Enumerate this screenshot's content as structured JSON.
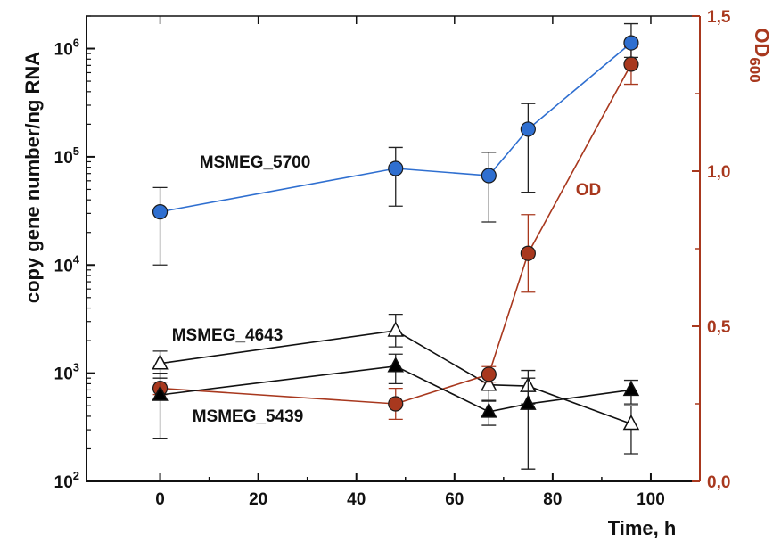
{
  "chart_data": {
    "type": "line",
    "xlabel": "Time, h",
    "ylabel": "copy gene number/ng RNA",
    "y2label": "OD600",
    "xlim": [
      -15,
      110
    ],
    "xticks": [
      "0",
      "20",
      "40",
      "60",
      "80",
      "100"
    ],
    "y_scale": "log",
    "ylim": [
      100,
      2000000
    ],
    "yticks": [
      {
        "base": "10",
        "exp": "2"
      },
      {
        "base": "10",
        "exp": "3"
      },
      {
        "base": "10",
        "exp": "4"
      },
      {
        "base": "10",
        "exp": "5"
      },
      {
        "base": "10",
        "exp": "6"
      }
    ],
    "y2lim": [
      0,
      1.5
    ],
    "y2ticks": [
      "0,0",
      "0,5",
      "1,0",
      "1,5"
    ],
    "grid": false,
    "series": [
      {
        "name": "MSMEG_5700",
        "axis": "left",
        "color": "#2f6fd0",
        "marker": "circle-filled",
        "x": [
          0,
          48,
          67,
          75,
          96
        ],
        "y": [
          31000,
          78000,
          67000,
          180000,
          1130000
        ],
        "err_low": [
          10000,
          35000,
          25000,
          47000,
          830000
        ],
        "err_high": [
          52000,
          122000,
          110000,
          310000,
          1700000
        ]
      },
      {
        "name": "MSMEG_4643",
        "axis": "left",
        "color": "#111111",
        "marker": "triangle-open",
        "x": [
          0,
          48,
          67,
          75,
          96
        ],
        "y": [
          1230,
          2470,
          780,
          760,
          340
        ],
        "err_low": [
          900,
          1750,
          560,
          520,
          180
        ],
        "err_high": [
          1600,
          3500,
          1000,
          1060,
          500
        ]
      },
      {
        "name": "MSMEG_5439",
        "axis": "left",
        "color": "#111111",
        "marker": "triangle-filled",
        "x": [
          0,
          48,
          67,
          75,
          96
        ],
        "y": [
          630,
          1160,
          440,
          520,
          700
        ],
        "err_low": [
          250,
          800,
          330,
          130,
          520
        ],
        "err_high": [
          1000,
          1500,
          550,
          900,
          860
        ]
      },
      {
        "name": "OD",
        "axis": "right",
        "color": "#a8381e",
        "marker": "circle-filled",
        "x": [
          0,
          48,
          67,
          75,
          96
        ],
        "y": [
          0.3,
          0.25,
          0.345,
          0.735,
          1.345
        ],
        "err_low": [
          0.28,
          0.2,
          0.32,
          0.61,
          1.28
        ],
        "err_high": [
          0.32,
          0.3,
          0.37,
          0.86,
          1.4
        ]
      }
    ]
  }
}
